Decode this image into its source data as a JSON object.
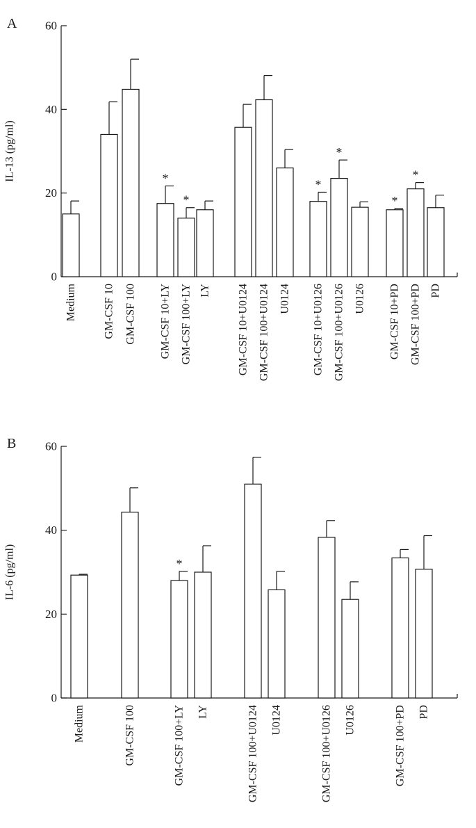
{
  "chart_data": [
    {
      "type": "bar",
      "panel_label": "A",
      "ylabel": "IL-13 (pg/ml)",
      "ylim": [
        0,
        60
      ],
      "yticks": [
        "0",
        "20",
        "40",
        "60"
      ],
      "grid": false,
      "categories": [
        "Medium",
        "GM-CSF 10",
        "GM-CSF 100",
        "GM-CSF 10+LY",
        "GM-CSF 100+LY",
        "LY",
        "GM-CSF 10+U0124",
        "GM-CSF 100+U0124",
        "U0124",
        "GM-CSF 10+U0126",
        "GM-CSF 100+U0126",
        "U0126",
        "GM-CSF 10+PD",
        "GM-CSF 100+PD",
        "PD"
      ],
      "values": [
        15,
        34,
        44.8,
        17.5,
        14,
        16,
        35.7,
        42.3,
        26,
        18,
        23.5,
        16.6,
        16,
        21,
        16.5
      ],
      "errors": [
        3.1,
        7.8,
        7.2,
        4.2,
        2.5,
        2.1,
        5.5,
        5.8,
        4.4,
        2.2,
        4.4,
        1.3,
        0.3,
        1.5,
        3
      ],
      "significance": [
        "",
        "",
        "",
        "*",
        "*",
        "",
        "",
        "",
        "",
        "*",
        "*",
        "",
        "*",
        "*",
        ""
      ]
    },
    {
      "type": "bar",
      "panel_label": "B",
      "ylabel": "IL-6 (pg/ml)",
      "ylim": [
        0,
        60
      ],
      "yticks": [
        "0",
        "20",
        "40",
        "60"
      ],
      "grid": false,
      "categories": [
        "Medium",
        "GM-CSF 100",
        "GM-CSF 100+LY",
        "LY",
        "GM-CSF 100+U0124",
        "U0124",
        "GM-CSF 100+U0126",
        "U0126",
        "GM-CSF 100+PD",
        "PD"
      ],
      "values": [
        29.3,
        44.3,
        28,
        30,
        51,
        25.8,
        38.3,
        23.5,
        33.4,
        30.7
      ],
      "errors": [
        0.2,
        5.8,
        2.2,
        6.3,
        6.4,
        4.4,
        4,
        4.2,
        2,
        8
      ],
      "significance": [
        "",
        "",
        "*",
        "",
        "",
        "",
        "",
        "",
        "",
        ""
      ]
    }
  ]
}
